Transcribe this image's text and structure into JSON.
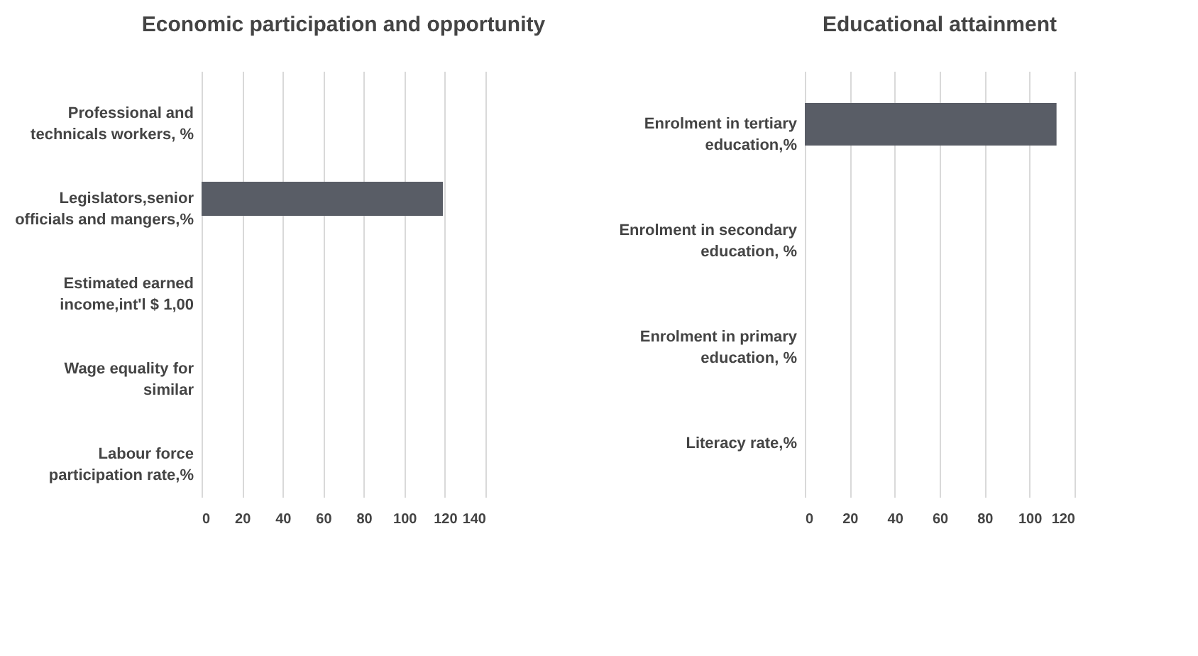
{
  "chart_data": [
    {
      "type": "bar",
      "orientation": "horizontal",
      "title": "Economic participation and opportunity",
      "categories": [
        "Professional and technicals workers, %",
        "Legislators,senior officials and mangers,%",
        "Estimated earned income,int'l $ 1,00",
        "Wage equality for similar",
        "Labour force participation rate,%"
      ],
      "values": [
        null,
        119,
        null,
        null,
        null
      ],
      "color": "#595d66",
      "xlim": [
        0,
        140
      ],
      "xticks": [
        0,
        20,
        40,
        60,
        80,
        100,
        120,
        140
      ],
      "grid": "x"
    },
    {
      "type": "bar",
      "orientation": "horizontal",
      "title": "Educational attainment",
      "categories": [
        "Enrolment in tertiary education,%",
        "Enrolment in secondary education, %",
        "Enrolment in primary education, %",
        "Literacy rate,%"
      ],
      "values": [
        112,
        null,
        null,
        null
      ],
      "color": "#595d66",
      "xlim": [
        0,
        120
      ],
      "xticks": [
        0,
        20,
        40,
        60,
        80,
        100,
        120
      ],
      "grid": "x"
    }
  ]
}
